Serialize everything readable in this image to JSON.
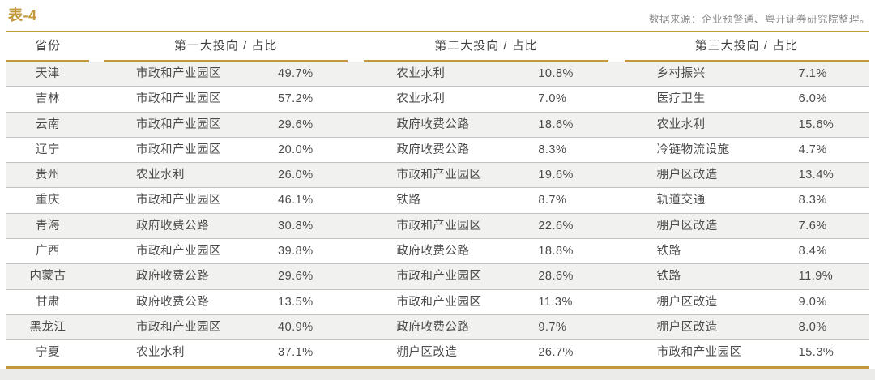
{
  "title": "表-4",
  "source": "数据来源：企业预警通、粤开证券研究院整理。",
  "colors": {
    "accent_gold": "#C2983A",
    "stripe": "#f1f1ef",
    "text": "#4a4a4a",
    "separator": "#c2c2c0",
    "source_text": "#8a8a8a"
  },
  "table": {
    "headers": [
      "省份",
      "第一大投向 / 占比",
      "第二大投向 / 占比",
      "第三大投向 / 占比"
    ]
  },
  "chart_data": {
    "type": "table",
    "title": "表-4",
    "source": "数据来源：企业预警通、粤开证券研究院整理。",
    "columns": [
      "省份",
      "第一大投向",
      "第一大占比",
      "第二大投向",
      "第二大占比",
      "第三大投向",
      "第三大占比"
    ],
    "rows": [
      [
        "天津",
        "市政和产业园区",
        "49.7%",
        "农业水利",
        "10.8%",
        "乡村振兴",
        "7.1%"
      ],
      [
        "吉林",
        "市政和产业园区",
        "57.2%",
        "农业水利",
        "7.0%",
        "医疗卫生",
        "6.0%"
      ],
      [
        "云南",
        "市政和产业园区",
        "29.6%",
        "政府收费公路",
        "18.6%",
        "农业水利",
        "15.6%"
      ],
      [
        "辽宁",
        "市政和产业园区",
        "20.0%",
        "政府收费公路",
        "8.3%",
        "冷链物流设施",
        "4.7%"
      ],
      [
        "贵州",
        "农业水利",
        "26.0%",
        "市政和产业园区",
        "19.6%",
        "棚户区改造",
        "13.4%"
      ],
      [
        "重庆",
        "市政和产业园区",
        "46.1%",
        "铁路",
        "8.7%",
        "轨道交通",
        "8.3%"
      ],
      [
        "青海",
        "政府收费公路",
        "30.8%",
        "市政和产业园区",
        "22.6%",
        "棚户区改造",
        "7.6%"
      ],
      [
        "广西",
        "市政和产业园区",
        "39.8%",
        "政府收费公路",
        "18.8%",
        "铁路",
        "8.4%"
      ],
      [
        "内蒙古",
        "政府收费公路",
        "29.6%",
        "市政和产业园区",
        "28.6%",
        "铁路",
        "11.9%"
      ],
      [
        "甘肃",
        "政府收费公路",
        "13.5%",
        "市政和产业园区",
        "11.3%",
        "棚户区改造",
        "9.0%"
      ],
      [
        "黑龙江",
        "市政和产业园区",
        "40.9%",
        "政府收费公路",
        "9.7%",
        "棚户区改造",
        "8.0%"
      ],
      [
        "宁夏",
        "农业水利",
        "37.1%",
        "棚户区改造",
        "26.7%",
        "市政和产业园区",
        "15.3%"
      ]
    ]
  }
}
